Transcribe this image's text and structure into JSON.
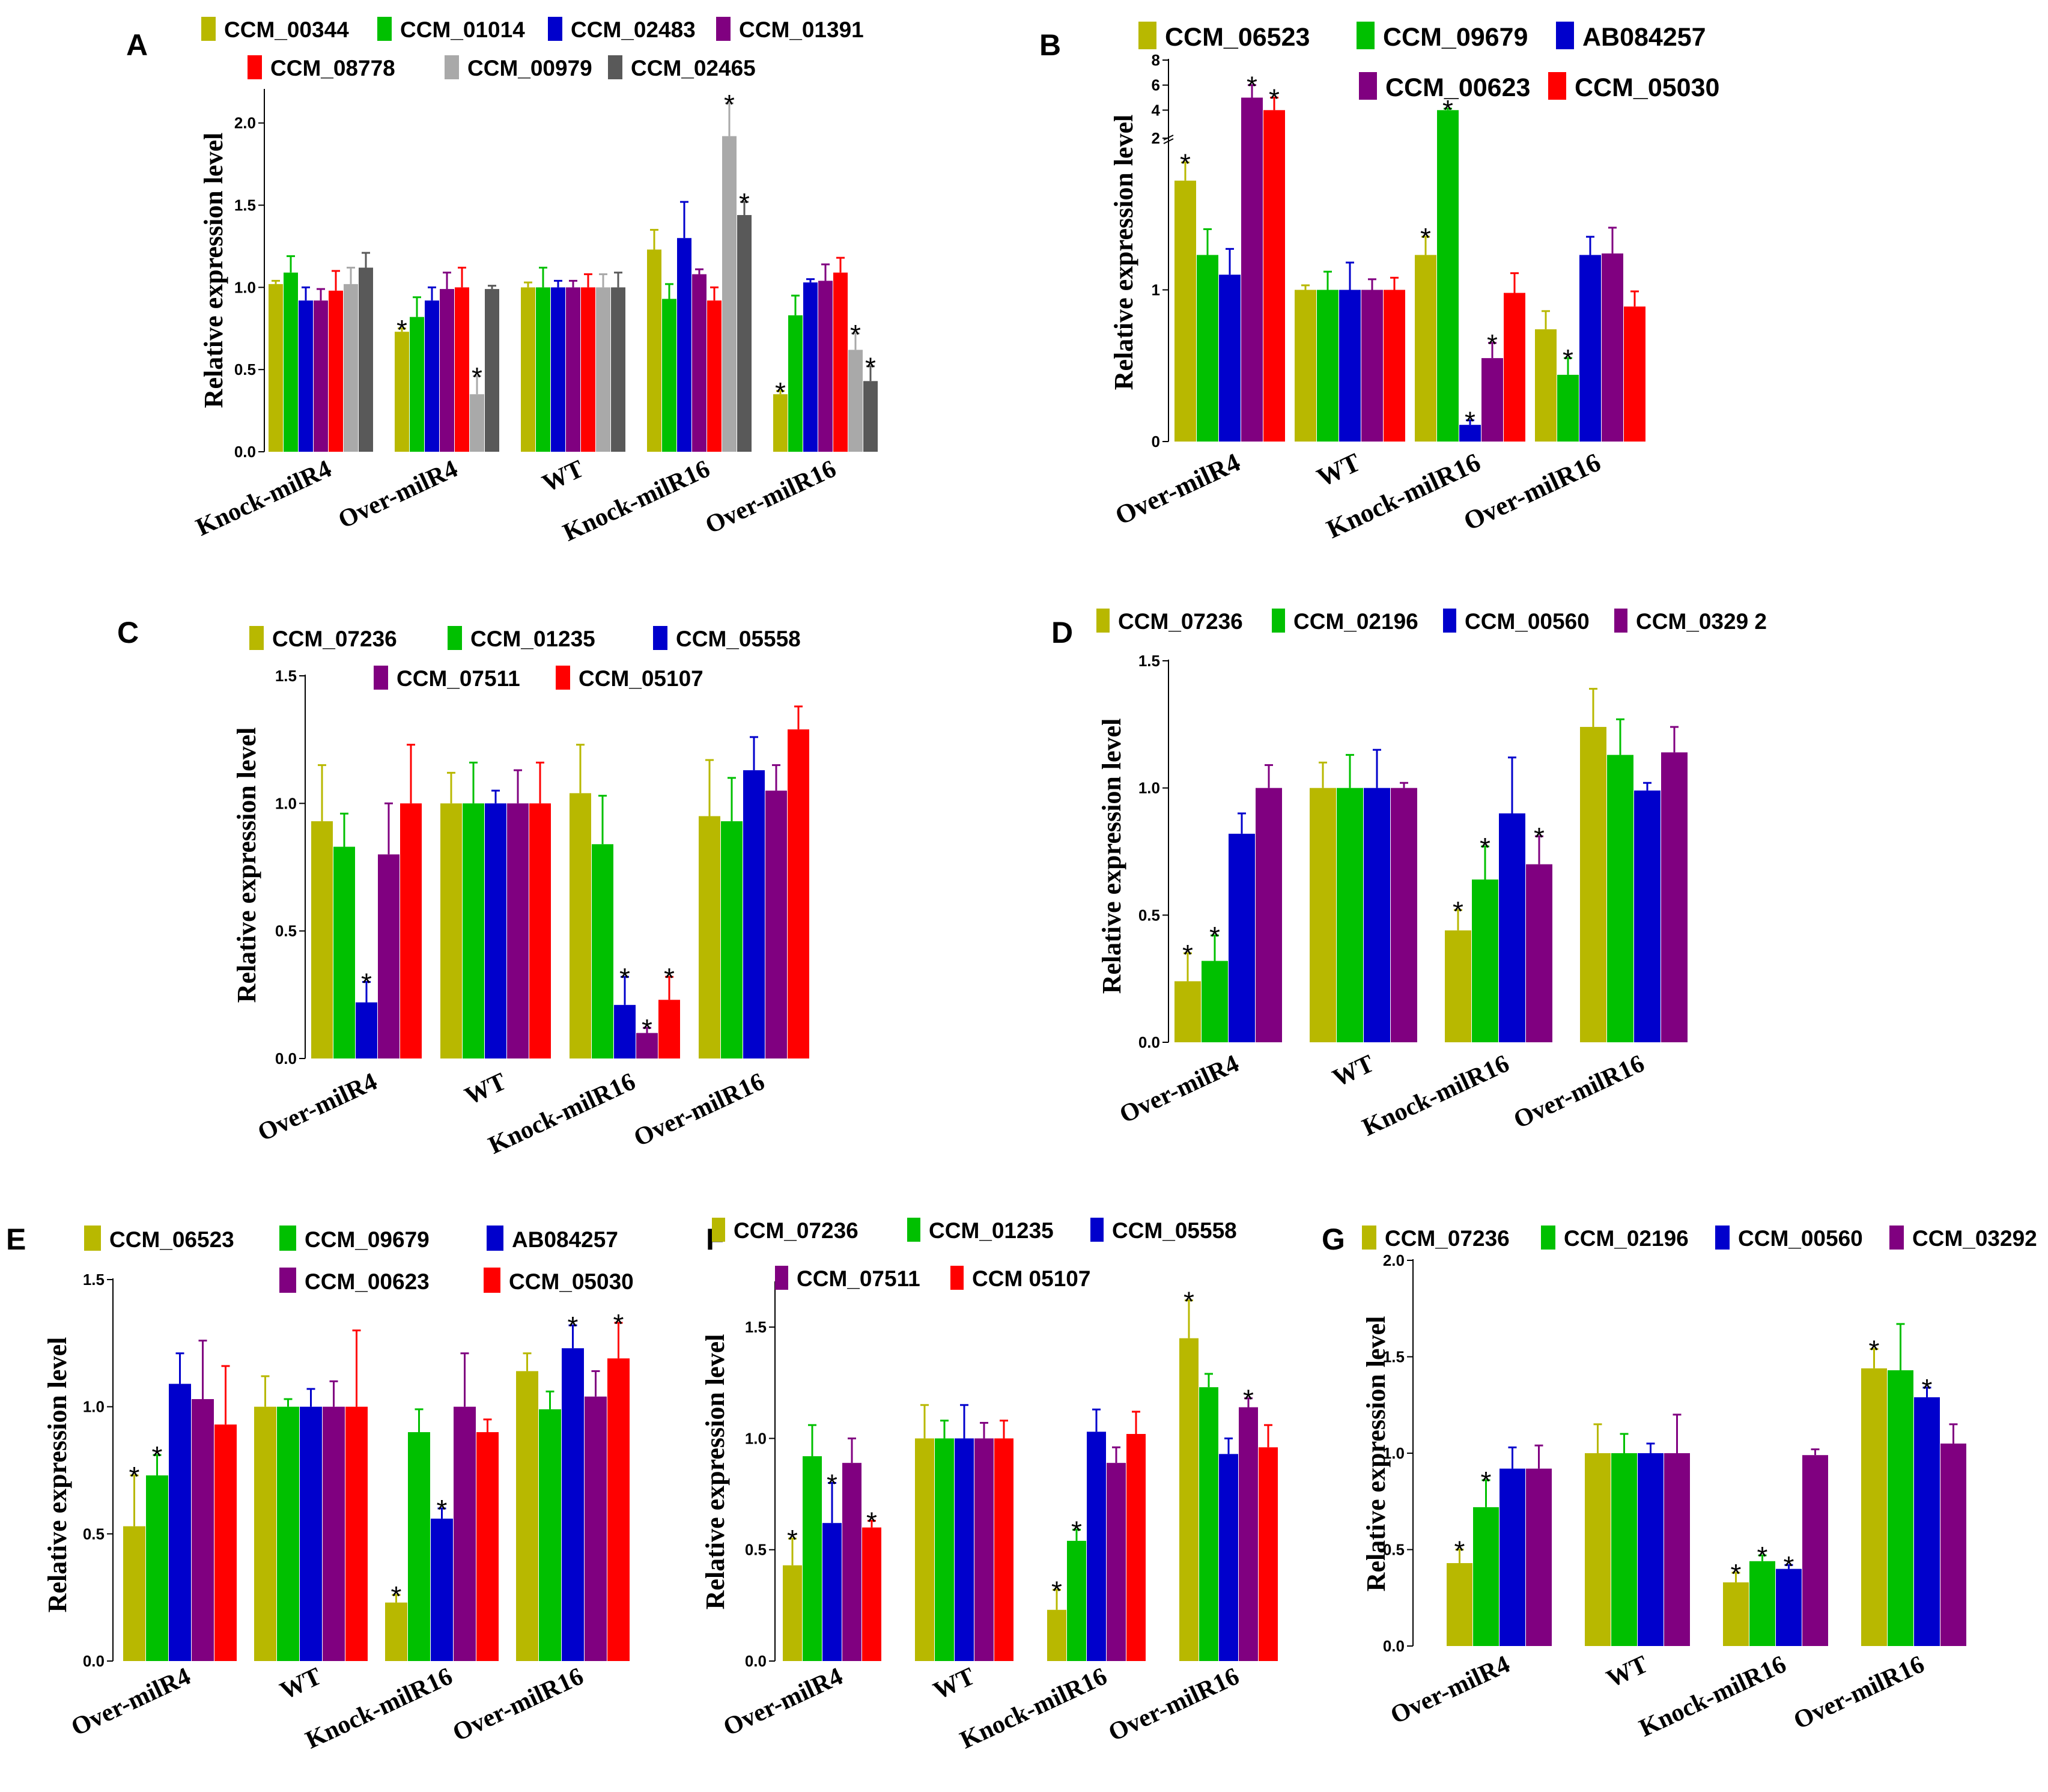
{
  "chart_data": [
    {
      "panel": "A",
      "type": "bar",
      "ylabel": "Relative expression level",
      "ylim": [
        0,
        2.2
      ],
      "yticks": [
        0.0,
        0.5,
        1.0,
        1.5,
        2.0
      ],
      "ytick_labels": [
        "0.0",
        "0.5",
        "1.0",
        "1.5",
        "2.0"
      ],
      "categories": [
        "Knock-milR4",
        "Over-milR4",
        "WT",
        "Knock-milR16",
        "Over-milR16"
      ],
      "series": [
        {
          "name": "CCM_00344",
          "color": "#b8b800",
          "values": [
            1.02,
            0.73,
            1.0,
            1.23,
            0.35
          ],
          "errors": [
            0.02,
            0.02,
            0.03,
            0.12,
            0.02
          ],
          "sig": [
            false,
            true,
            false,
            false,
            true
          ]
        },
        {
          "name": "CCM_01014",
          "color": "#00c000",
          "values": [
            1.09,
            0.82,
            1.0,
            0.93,
            0.83
          ],
          "errors": [
            0.1,
            0.12,
            0.12,
            0.09,
            0.12
          ],
          "sig": [
            false,
            false,
            false,
            false,
            false
          ]
        },
        {
          "name": "CCM_02483",
          "color": "#0000cc",
          "values": [
            0.92,
            0.92,
            1.0,
            1.3,
            1.03
          ],
          "errors": [
            0.08,
            0.08,
            0.04,
            0.22,
            0.02
          ],
          "sig": [
            false,
            false,
            false,
            false,
            false
          ]
        },
        {
          "name": "CCM_01391",
          "color": "#800080",
          "values": [
            0.92,
            0.99,
            1.0,
            1.08,
            1.04
          ],
          "errors": [
            0.07,
            0.1,
            0.04,
            0.03,
            0.1
          ],
          "sig": [
            false,
            false,
            false,
            false,
            false
          ]
        },
        {
          "name": "CCM_08778",
          "color": "#ff0000",
          "values": [
            0.98,
            1.0,
            1.0,
            0.92,
            1.09
          ],
          "errors": [
            0.12,
            0.12,
            0.08,
            0.08,
            0.09
          ],
          "sig": [
            false,
            false,
            false,
            false,
            false
          ]
        },
        {
          "name": "CCM_00979",
          "color": "#a9a9a9",
          "values": [
            1.02,
            0.35,
            1.0,
            1.92,
            0.62
          ],
          "errors": [
            0.1,
            0.11,
            0.08,
            0.2,
            0.1
          ],
          "sig": [
            false,
            true,
            false,
            true,
            true
          ]
        },
        {
          "name": "CCM_02465",
          "color": "#595959",
          "values": [
            1.12,
            0.99,
            1.0,
            1.44,
            0.43
          ],
          "errors": [
            0.09,
            0.02,
            0.09,
            0.08,
            0.09
          ],
          "sig": [
            false,
            false,
            false,
            true,
            true
          ]
        }
      ]
    },
    {
      "panel": "B",
      "type": "bar",
      "ylabel": "Relative expression level",
      "broken_axis": true,
      "ylim": [
        0,
        8
      ],
      "yticks": [
        0,
        1,
        2,
        4,
        6,
        8
      ],
      "ytick_labels": [
        "0",
        "1",
        "2",
        "4",
        "6",
        "8"
      ],
      "categories": [
        "Over-milR4",
        "WT",
        "Knock-milR16",
        "Over-milR16"
      ],
      "series": [
        {
          "name": "CCM_06523",
          "color": "#b8b800",
          "values": [
            1.72,
            1.0,
            1.23,
            0.74
          ],
          "errors": [
            0.12,
            0.03,
            0.12,
            0.12
          ],
          "sig": [
            true,
            false,
            true,
            false
          ]
        },
        {
          "name": "CCM_09679",
          "color": "#00c000",
          "values": [
            1.23,
            1.0,
            4.0,
            0.44
          ],
          "errors": [
            0.17,
            0.12,
            0.12,
            0.11
          ],
          "sig": [
            false,
            false,
            true,
            true
          ]
        },
        {
          "name": "AB084257",
          "color": "#0000cc",
          "values": [
            1.1,
            1.0,
            0.11,
            1.23
          ],
          "errors": [
            0.17,
            0.18,
            0.03,
            0.12
          ],
          "sig": [
            false,
            false,
            true,
            false
          ]
        },
        {
          "name": "CCM_00623",
          "color": "#800080",
          "values": [
            5.0,
            1.0,
            0.55,
            1.24
          ],
          "errors": [
            1.0,
            0.07,
            0.1,
            0.17
          ],
          "sig": [
            true,
            false,
            true,
            false
          ]
        },
        {
          "name": "CCM_05030",
          "color": "#ff0000",
          "values": [
            4.0,
            1.0,
            0.98,
            0.89
          ],
          "errors": [
            1.0,
            0.08,
            0.13,
            0.1
          ],
          "sig": [
            true,
            false,
            false,
            false
          ]
        }
      ]
    },
    {
      "panel": "C",
      "type": "bar",
      "ylabel": "Relative expression level",
      "ylim": [
        0,
        1.5
      ],
      "yticks": [
        0.0,
        0.5,
        1.0,
        1.5
      ],
      "ytick_labels": [
        "0.0",
        "0.5",
        "1.0",
        "1.5"
      ],
      "categories": [
        "Over-milR4",
        "WT",
        "Knock-milR16",
        "Over-milR16"
      ],
      "series": [
        {
          "name": "CCM_07236",
          "color": "#b8b800",
          "values": [
            0.93,
            1.0,
            1.04,
            0.95
          ],
          "errors": [
            0.22,
            0.12,
            0.19,
            0.22
          ],
          "sig": [
            false,
            false,
            false,
            false
          ]
        },
        {
          "name": "CCM_01235",
          "color": "#00c000",
          "values": [
            0.83,
            1.0,
            0.84,
            0.93
          ],
          "errors": [
            0.13,
            0.16,
            0.19,
            0.17
          ],
          "sig": [
            false,
            false,
            false,
            false
          ]
        },
        {
          "name": "CCM_05558",
          "color": "#0000cc",
          "values": [
            0.22,
            1.0,
            0.21,
            1.13
          ],
          "errors": [
            0.08,
            0.05,
            0.11,
            0.13
          ],
          "sig": [
            true,
            false,
            true,
            false
          ]
        },
        {
          "name": "CCM_07511",
          "color": "#800080",
          "values": [
            0.8,
            1.0,
            0.1,
            1.05
          ],
          "errors": [
            0.2,
            0.13,
            0.02,
            0.1
          ],
          "sig": [
            false,
            false,
            true,
            false
          ]
        },
        {
          "name": "CCM_05107",
          "color": "#ff0000",
          "values": [
            1.0,
            1.0,
            0.23,
            1.29
          ],
          "errors": [
            0.23,
            0.16,
            0.09,
            0.09
          ],
          "sig": [
            false,
            false,
            true,
            false
          ]
        }
      ]
    },
    {
      "panel": "D",
      "type": "bar",
      "ylabel": "Relative expression level",
      "ylim": [
        0,
        1.5
      ],
      "yticks": [
        0.0,
        0.5,
        1.0,
        1.5
      ],
      "ytick_labels": [
        "0.0",
        "0.5",
        "1.0",
        "1.5"
      ],
      "categories": [
        "Over-milR4",
        "WT",
        "Knock-milR16",
        "Over-milR16"
      ],
      "series": [
        {
          "name": "CCM_07236",
          "color": "#b8b800",
          "values": [
            0.24,
            1.0,
            0.44,
            1.24
          ],
          "errors": [
            0.11,
            0.1,
            0.08,
            0.15
          ],
          "sig": [
            true,
            false,
            true,
            false
          ]
        },
        {
          "name": "CCM_02196",
          "color": "#00c000",
          "values": [
            0.32,
            1.0,
            0.64,
            1.13
          ],
          "errors": [
            0.1,
            0.13,
            0.13,
            0.14
          ],
          "sig": [
            true,
            false,
            true,
            false
          ]
        },
        {
          "name": "CCM_00560",
          "color": "#0000cc",
          "values": [
            0.82,
            1.0,
            0.9,
            0.99
          ],
          "errors": [
            0.08,
            0.15,
            0.22,
            0.03
          ],
          "sig": [
            false,
            false,
            false,
            false
          ]
        },
        {
          "name": "CCM_0329 2",
          "color": "#800080",
          "values": [
            1.0,
            1.0,
            0.7,
            1.14
          ],
          "errors": [
            0.09,
            0.02,
            0.11,
            0.1
          ],
          "sig": [
            false,
            false,
            true,
            false
          ]
        }
      ]
    },
    {
      "panel": "E",
      "type": "bar",
      "ylabel": "Relative expression level",
      "ylim": [
        0,
        1.5
      ],
      "yticks": [
        0.0,
        0.5,
        1.0,
        1.5
      ],
      "ytick_labels": [
        "0.0",
        "0.5",
        "1.0",
        "1.5"
      ],
      "categories": [
        "Over-milR4",
        "WT",
        "Knock-milR16",
        "Over-milR16"
      ],
      "series": [
        {
          "name": "CCM_06523",
          "color": "#b8b800",
          "values": [
            0.53,
            1.0,
            0.23,
            1.14
          ],
          "errors": [
            0.2,
            0.12,
            0.03,
            0.07
          ],
          "sig": [
            true,
            false,
            true,
            false
          ]
        },
        {
          "name": "CCM_09679",
          "color": "#00c000",
          "values": [
            0.73,
            1.0,
            0.9,
            0.99
          ],
          "errors": [
            0.08,
            0.03,
            0.09,
            0.07
          ],
          "sig": [
            true,
            false,
            false,
            false
          ]
        },
        {
          "name": "AB084257",
          "color": "#0000cc",
          "values": [
            1.09,
            1.0,
            0.56,
            1.23
          ],
          "errors": [
            0.12,
            0.07,
            0.04,
            0.09
          ],
          "sig": [
            false,
            false,
            true,
            true
          ]
        },
        {
          "name": "CCM_00623",
          "color": "#800080",
          "values": [
            1.03,
            1.0,
            1.0,
            1.04
          ],
          "errors": [
            0.23,
            0.1,
            0.21,
            0.1
          ],
          "sig": [
            false,
            false,
            false,
            false
          ]
        },
        {
          "name": "CCM_05030",
          "color": "#ff0000",
          "values": [
            0.93,
            1.0,
            0.9,
            1.19
          ],
          "errors": [
            0.23,
            0.3,
            0.05,
            0.14
          ],
          "sig": [
            false,
            false,
            false,
            true
          ]
        }
      ]
    },
    {
      "panel": "F",
      "type": "bar",
      "ylabel": "Relative expression level",
      "ylim": [
        0,
        1.7
      ],
      "yticks": [
        0.0,
        0.5,
        1.0,
        1.5
      ],
      "ytick_labels": [
        "0.0",
        "0.5",
        "1.0",
        "1.5"
      ],
      "categories": [
        "Over-milR4",
        "WT",
        "Knock-milR16",
        "Over-milR16"
      ],
      "series": [
        {
          "name": "CCM_07236",
          "color": "#b8b800",
          "values": [
            0.43,
            1.0,
            0.23,
            1.45
          ],
          "errors": [
            0.12,
            0.15,
            0.09,
            0.17
          ],
          "sig": [
            true,
            false,
            true,
            true
          ]
        },
        {
          "name": "CCM_01235",
          "color": "#00c000",
          "values": [
            0.92,
            1.0,
            0.54,
            1.23
          ],
          "errors": [
            0.14,
            0.08,
            0.05,
            0.06
          ],
          "sig": [
            false,
            false,
            true,
            false
          ]
        },
        {
          "name": "CCM_05558",
          "color": "#0000cc",
          "values": [
            0.62,
            1.0,
            1.03,
            0.93
          ],
          "errors": [
            0.18,
            0.15,
            0.1,
            0.07
          ],
          "sig": [
            true,
            false,
            false,
            false
          ]
        },
        {
          "name": "CCM_07511",
          "color": "#800080",
          "values": [
            0.89,
            1.0,
            0.89,
            1.14
          ],
          "errors": [
            0.11,
            0.07,
            0.07,
            0.04
          ],
          "sig": [
            false,
            false,
            false,
            true
          ]
        },
        {
          "name": "CCM 05107",
          "color": "#ff0000",
          "values": [
            0.6,
            1.0,
            1.02,
            0.96
          ],
          "errors": [
            0.03,
            0.08,
            0.1,
            0.1
          ],
          "sig": [
            true,
            false,
            false,
            false
          ]
        }
      ]
    },
    {
      "panel": "G",
      "type": "bar",
      "ylabel": "Relative expression level",
      "ylim": [
        0,
        2.0
      ],
      "yticks": [
        0.0,
        0.5,
        1.0,
        1.5,
        2.0
      ],
      "ytick_labels": [
        "0.0",
        "0.5",
        "1.0",
        "1.5",
        "2.0"
      ],
      "categories": [
        "Over-milR4",
        "WT",
        "Knock-milR16",
        "Over-milR16"
      ],
      "series": [
        {
          "name": "CCM_07236",
          "color": "#b8b800",
          "values": [
            0.43,
            1.0,
            0.33,
            1.44
          ],
          "errors": [
            0.07,
            0.15,
            0.05,
            0.1
          ],
          "sig": [
            true,
            false,
            true,
            true
          ]
        },
        {
          "name": "CCM_02196",
          "color": "#00c000",
          "values": [
            0.72,
            1.0,
            0.44,
            1.43
          ],
          "errors": [
            0.14,
            0.1,
            0.03,
            0.24
          ],
          "sig": [
            true,
            false,
            true,
            false
          ]
        },
        {
          "name": "CCM_00560",
          "color": "#0000cc",
          "values": [
            0.92,
            1.0,
            0.4,
            1.29
          ],
          "errors": [
            0.11,
            0.05,
            0.02,
            0.05
          ],
          "sig": [
            false,
            false,
            true,
            true
          ]
        },
        {
          "name": "CCM_03292",
          "color": "#800080",
          "values": [
            0.92,
            1.0,
            0.99,
            1.05
          ],
          "errors": [
            0.12,
            0.2,
            0.03,
            0.1
          ],
          "sig": [
            false,
            false,
            false,
            false
          ]
        }
      ]
    }
  ]
}
